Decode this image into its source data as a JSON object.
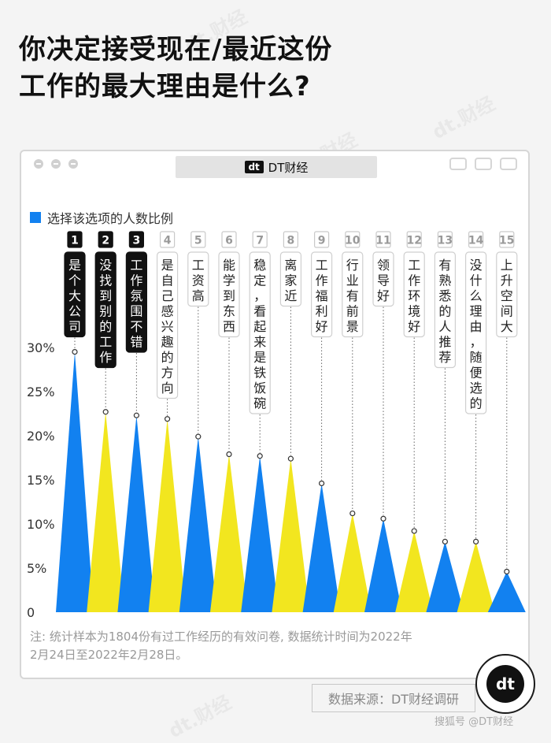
{
  "title": {
    "line1": "你决定接受现在/最近这份",
    "line2": "工作的最大理由是什么?"
  },
  "window": {
    "app_name": "DT财经",
    "logo_text": "dt",
    "buttons": [
      "close-dot",
      "minimize-dot",
      "maximize-dot"
    ],
    "right_icons": [
      "record-icon",
      "share-icon",
      "copy-icon"
    ]
  },
  "legend": {
    "label": "选择该选项的人数比例",
    "color": "#1281f0"
  },
  "chart_data": {
    "type": "bar",
    "style": "triangle-spike",
    "ylim": [
      0,
      30
    ],
    "yticks": [
      0,
      5,
      10,
      15,
      20,
      25,
      30
    ],
    "ytick_labels": [
      "0",
      "5%",
      "10%",
      "15%",
      "20%",
      "25%",
      "30%"
    ],
    "grid": false,
    "categories": [
      "是个大公司",
      "没找到别的工作",
      "工作氛围不错",
      "是自己感兴趣的方向",
      "工资高",
      "能学到东西",
      "稳定，看起来是铁饭碗",
      "离家近",
      "工作福利好",
      "行业有前景",
      "领导好",
      "工作环境好",
      "有熟悉的人推荐",
      "没什么理由，随便选的",
      "上升空间大"
    ],
    "ranks": [
      "1",
      "2",
      "3",
      "4",
      "5",
      "6",
      "7",
      "8",
      "9",
      "10",
      "11",
      "12",
      "13",
      "14",
      "15"
    ],
    "values": [
      29.5,
      22.7,
      22.3,
      21.9,
      19.9,
      17.9,
      17.7,
      17.4,
      14.6,
      11.2,
      10.6,
      9.2,
      8.0,
      8.0,
      4.6
    ],
    "highlight_top": 3,
    "colors": {
      "blue": "#1281f0",
      "yellow": "#f2e61f"
    }
  },
  "note": {
    "line1": "注: 统计样本为1804份有过工作经历的有效问卷, 数据统计时间为2022年",
    "line2": "2月24日至2022年2月28日。"
  },
  "source": "数据来源：DT财经调研",
  "badge": "dt",
  "footer": "搜狐号 @DT财经",
  "watermark": "dt.财经"
}
